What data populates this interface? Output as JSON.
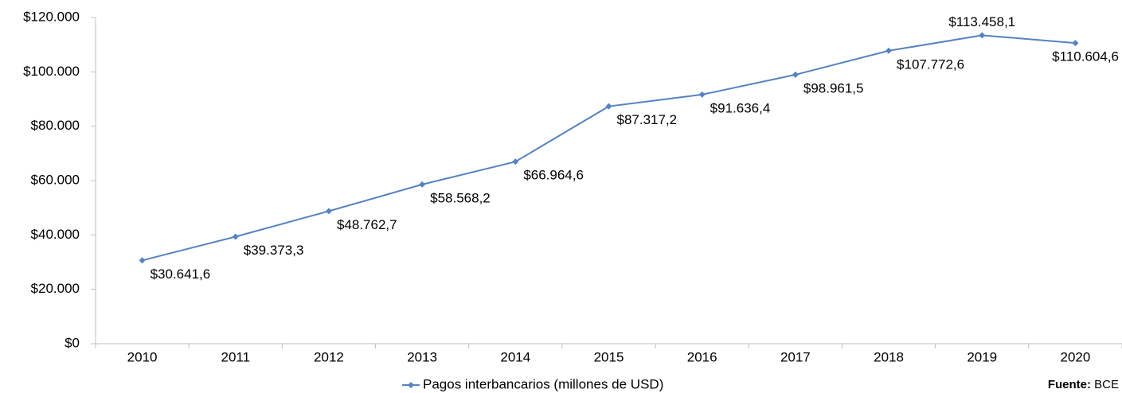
{
  "chart_data": {
    "type": "line",
    "categories": [
      "2010",
      "2011",
      "2012",
      "2013",
      "2014",
      "2015",
      "2016",
      "2017",
      "2018",
      "2019",
      "2020"
    ],
    "series": [
      {
        "name": "Pagos interbancarios (millones de USD)",
        "color": "#5682c0",
        "values": [
          30641.6,
          39373.3,
          48762.7,
          58568.2,
          66964.6,
          87317.2,
          91636.4,
          98961.5,
          107772.6,
          113458.1,
          110604.6
        ],
        "value_labels": [
          "$30.641,6",
          "$39.373,3",
          "$48.762,7",
          "$58.568,2",
          "$66.964,6",
          "$87.317,2",
          "$91.636,4",
          "$98.961,5",
          "$107.772,6",
          "$113.458,1",
          "$110.604,6"
        ]
      }
    ],
    "ylim": [
      0,
      120000
    ],
    "yticks": [
      {
        "value": 0,
        "label": "$0"
      },
      {
        "value": 20000,
        "label": "$20.000"
      },
      {
        "value": 40000,
        "label": "$40.000"
      },
      {
        "value": 60000,
        "label": "$60.000"
      },
      {
        "value": 80000,
        "label": "$80.000"
      },
      {
        "value": 100000,
        "label": "$100.000"
      },
      {
        "value": 120000,
        "label": "$120.000"
      }
    ],
    "grid": false,
    "legend": "bottom",
    "source": {
      "label": "Fuente:",
      "value": "BCE"
    }
  }
}
